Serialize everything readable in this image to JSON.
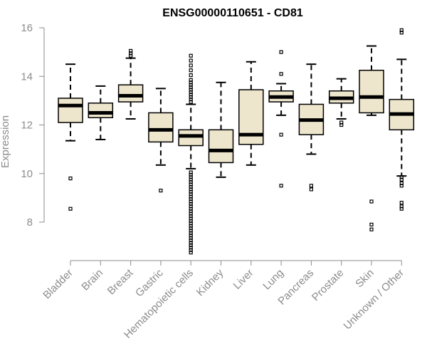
{
  "chart_data": {
    "type": "boxplot",
    "title": "ENSG00000110651 - CD81",
    "xlabel": "",
    "ylabel": "Expression",
    "ylim": [
      6.6,
      16.2
    ],
    "yticks": [
      8,
      10,
      12,
      14,
      16
    ],
    "colors": {
      "box_fill": "#ede5cc",
      "stroke": "#000000",
      "axis": "#8c8c8c"
    },
    "categories": [
      "Bladder",
      "Brain",
      "Breast",
      "Gastric",
      "Hematopoietic cells",
      "Kidney",
      "Liver",
      "Lung",
      "Pancreas",
      "Prostate",
      "Skin",
      "Unknown / Other"
    ],
    "boxes": [
      {
        "category": "Bladder",
        "whislo": 11.35,
        "q1": 12.1,
        "med": 12.8,
        "q3": 13.1,
        "whishi": 14.5,
        "outliers": [
          9.8,
          8.55
        ]
      },
      {
        "category": "Brain",
        "whislo": 11.4,
        "q1": 12.3,
        "med": 12.5,
        "q3": 12.9,
        "whishi": 13.6,
        "outliers": []
      },
      {
        "category": "Breast",
        "whislo": 12.25,
        "q1": 12.95,
        "med": 13.2,
        "q3": 13.65,
        "whishi": 14.75,
        "outliers": [
          14.85,
          14.95,
          15.05
        ]
      },
      {
        "category": "Gastric",
        "whislo": 10.35,
        "q1": 11.3,
        "med": 11.8,
        "q3": 12.5,
        "whishi": 13.5,
        "outliers": [
          9.3
        ]
      },
      {
        "category": "Hematopoietic cells",
        "whislo": 10.2,
        "q1": 11.15,
        "med": 11.55,
        "q3": 11.8,
        "whishi": 12.85,
        "outliers": [
          14.85,
          14.65,
          14.45,
          14.25,
          14.05,
          13.85,
          13.75,
          13.65,
          13.55,
          13.45,
          13.35,
          13.25,
          13.15,
          13.05,
          12.95,
          10.05,
          9.95,
          9.85,
          9.75,
          9.65,
          9.55,
          9.45,
          9.35,
          9.25,
          9.15,
          9.05,
          8.95,
          8.85,
          8.75,
          8.65,
          8.55,
          8.45,
          8.35,
          8.25,
          8.15,
          8.05,
          7.95,
          7.85,
          7.75,
          7.65,
          7.55,
          7.45,
          7.35,
          7.25,
          7.15,
          7.05,
          6.95,
          6.85,
          6.75
        ]
      },
      {
        "category": "Kidney",
        "whislo": 9.85,
        "q1": 10.45,
        "med": 10.95,
        "q3": 11.8,
        "whishi": 13.75,
        "outliers": []
      },
      {
        "category": "Liver",
        "whislo": 10.35,
        "q1": 11.2,
        "med": 11.6,
        "q3": 13.45,
        "whishi": 14.6,
        "outliers": []
      },
      {
        "category": "Lung",
        "whislo": 12.4,
        "q1": 12.95,
        "med": 13.15,
        "q3": 13.4,
        "whishi": 13.7,
        "outliers": [
          15.0,
          14.1,
          11.6,
          9.5
        ]
      },
      {
        "category": "Pancreas",
        "whislo": 10.8,
        "q1": 11.6,
        "med": 12.2,
        "q3": 12.85,
        "whishi": 14.5,
        "outliers": [
          9.5,
          9.35
        ]
      },
      {
        "category": "Prostate",
        "whislo": 12.25,
        "q1": 12.9,
        "med": 13.1,
        "q3": 13.4,
        "whishi": 13.9,
        "outliers": [
          12.1,
          12.0
        ]
      },
      {
        "category": "Skin",
        "whislo": 12.4,
        "q1": 12.5,
        "med": 13.15,
        "q3": 14.25,
        "whishi": 15.25,
        "outliers": [
          8.85,
          7.9,
          7.7
        ]
      },
      {
        "category": "Unknown / Other",
        "whislo": 9.9,
        "q1": 11.8,
        "med": 12.45,
        "q3": 13.05,
        "whishi": 14.7,
        "outliers": [
          15.9,
          15.8,
          9.85,
          9.75,
          9.6,
          9.5,
          8.8,
          8.65,
          8.55
        ]
      }
    ]
  }
}
